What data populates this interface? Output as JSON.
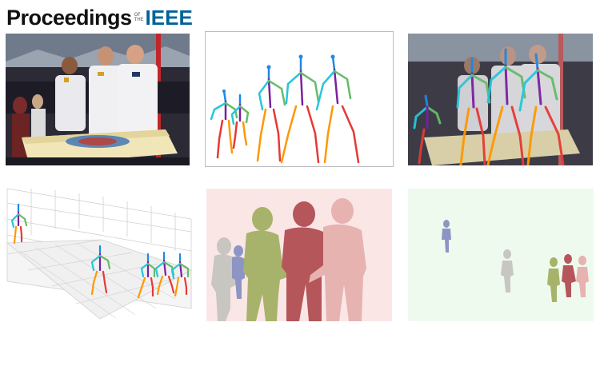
{
  "header": {
    "logo_main": "Proceedings",
    "logo_of": "OF",
    "logo_the": "THE",
    "logo_ieee": "IEEE",
    "ieee_color": "#00629b"
  },
  "figure": {
    "panels": [
      {
        "name": "input-photo"
      },
      {
        "name": "2d-pose-skeletons"
      },
      {
        "name": "pose-overlay-photo"
      },
      {
        "name": "3d-skeletons-on-grid"
      },
      {
        "name": "mesh-render-camera-view"
      },
      {
        "name": "mesh-render-top-view"
      }
    ],
    "colors": {
      "head": "#1e88e5",
      "torso": "#7b1fa2",
      "arms": "#26c6da",
      "arms2": "#66bb6a",
      "legs": "#ff9800",
      "legs2": "#e53935",
      "mesh_green": "#a7b36a",
      "mesh_red": "#b5565a",
      "mesh_pink": "#e6b3b0",
      "mesh_gray": "#c8c6c0",
      "mesh_blue": "#8d95c4"
    }
  }
}
